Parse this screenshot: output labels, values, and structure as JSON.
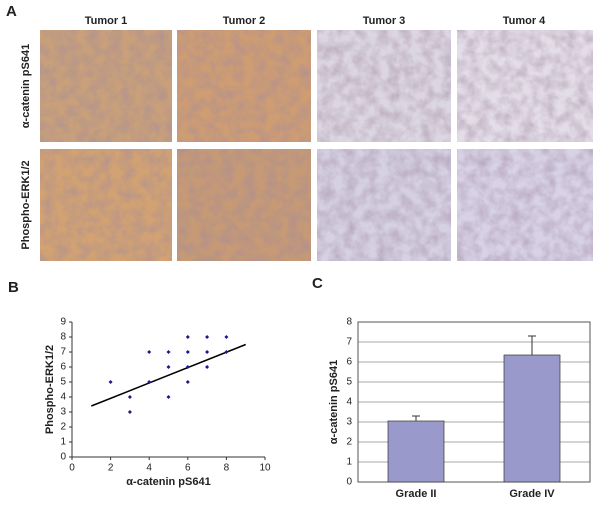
{
  "panel_labels": [
    "A",
    "B",
    "C"
  ],
  "figure_a": {
    "columns": [
      "Tumor 1",
      "Tumor 2",
      "Tumor 3",
      "Tumor 4"
    ],
    "rows": [
      "α-catenin pS641",
      "Phospho-ERK1/2"
    ]
  },
  "chart_data": [
    {
      "type": "scatter",
      "xlabel": "α-catenin pS641",
      "ylabel": "Phospho-ERK1/2",
      "x": [
        2,
        3,
        3,
        4,
        4,
        5,
        5,
        5,
        6,
        6,
        6,
        6,
        7,
        7,
        7,
        8,
        8
      ],
      "values": [
        5,
        4,
        3,
        7,
        5,
        7,
        6,
        4,
        8,
        7,
        6,
        5,
        8,
        7,
        6,
        8,
        7
      ],
      "color": "#1a1a8c",
      "trendline": {
        "x": [
          1,
          9
        ],
        "y": [
          3.4,
          7.5
        ]
      },
      "xlim": [
        0,
        10
      ],
      "xticks": [
        0,
        2,
        4,
        6,
        8,
        10
      ],
      "ylim": [
        0,
        9
      ],
      "yticks": [
        0,
        1,
        2,
        3,
        4,
        5,
        6,
        7,
        8,
        9
      ]
    },
    {
      "type": "bar",
      "ylabel": "α-catenin pS641",
      "categories": [
        "Grade II",
        "Grade IV"
      ],
      "values": [
        3.05,
        6.35
      ],
      "errors": [
        0.25,
        0.95
      ],
      "color": "#9999cc",
      "ylim": [
        0,
        8
      ],
      "yticks": [
        0,
        1,
        2,
        3,
        4,
        5,
        6,
        7,
        8
      ],
      "grid": true
    }
  ]
}
